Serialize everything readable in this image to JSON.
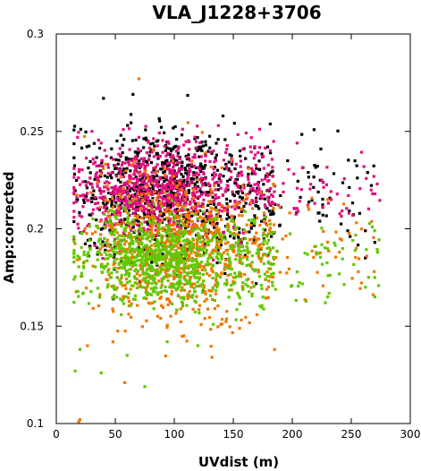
{
  "chart_data": {
    "type": "scatter",
    "title": "VLA_J1228+3706",
    "xlabel": "UVdist (m)",
    "ylabel": "Amp:corrected",
    "xlim": [
      0,
      300
    ],
    "ylim": [
      0.1,
      0.3
    ],
    "xticks": [
      0,
      50,
      100,
      150,
      200,
      250,
      300
    ],
    "xtick_labels": [
      "0",
      "50",
      "100",
      "150",
      "200",
      "250",
      "300"
    ],
    "yticks": [
      0.1,
      0.15,
      0.2,
      0.25,
      0.3
    ],
    "ytick_labels": [
      "0.1",
      "0.15",
      "0.2",
      "0.25",
      "0.3"
    ],
    "grid": false,
    "legend": false,
    "series": [
      {
        "color": "#000000",
        "cloud": {
          "x_min": 15,
          "x_max": 275,
          "x_peak": 80,
          "y_mean": 0.218,
          "y_sd": 0.016
        },
        "points": [
          [
            65,
            0.269
          ],
          [
            40,
            0.267
          ],
          [
            115,
            0.232
          ],
          [
            190,
            0.217
          ],
          [
            18,
            0.215
          ],
          [
            222,
            0.208
          ],
          [
            247,
            0.199
          ],
          [
            262,
            0.199
          ],
          [
            262,
            0.185
          ],
          [
            270,
            0.193
          ]
        ]
      },
      {
        "color": "#e0107e",
        "cloud": {
          "x_min": 15,
          "x_max": 275,
          "x_peak": 75,
          "y_mean": 0.22,
          "y_sd": 0.012
        },
        "points": [
          [
            18,
            0.247
          ],
          [
            38,
            0.244
          ],
          [
            70,
            0.247
          ],
          [
            108,
            0.243
          ],
          [
            225,
            0.225
          ],
          [
            272,
            0.223
          ],
          [
            268,
            0.218
          ],
          [
            233,
            0.215
          ],
          [
            219,
            0.213
          ],
          [
            248,
            0.208
          ],
          [
            205,
            0.209
          ]
        ]
      },
      {
        "color": "#f07800",
        "cloud": {
          "x_min": 15,
          "x_max": 275,
          "x_peak": 90,
          "y_mean": 0.19,
          "y_sd": 0.018
        },
        "points": [
          [
            70,
            0.277
          ],
          [
            20,
            0.102
          ],
          [
            19,
            0.101
          ],
          [
            48,
            0.142
          ],
          [
            58,
            0.121
          ],
          [
            132,
            0.134
          ],
          [
            108,
            0.145
          ],
          [
            185,
            0.138
          ],
          [
            230,
            0.215
          ],
          [
            240,
            0.188
          ],
          [
            256,
            0.178
          ]
        ]
      },
      {
        "color": "#60c800",
        "cloud": {
          "x_min": 15,
          "x_max": 275,
          "x_peak": 80,
          "y_mean": 0.184,
          "y_sd": 0.011
        },
        "points": [
          [
            75,
            0.119
          ],
          [
            16,
            0.127
          ],
          [
            38,
            0.126
          ],
          [
            20,
            0.138
          ],
          [
            60,
            0.135
          ],
          [
            94,
            0.142
          ],
          [
            120,
            0.14
          ],
          [
            270,
            0.165
          ],
          [
            230,
            0.165
          ],
          [
            228,
            0.162
          ],
          [
            262,
            0.17
          ],
          [
            270,
            0.175
          ]
        ]
      }
    ]
  }
}
